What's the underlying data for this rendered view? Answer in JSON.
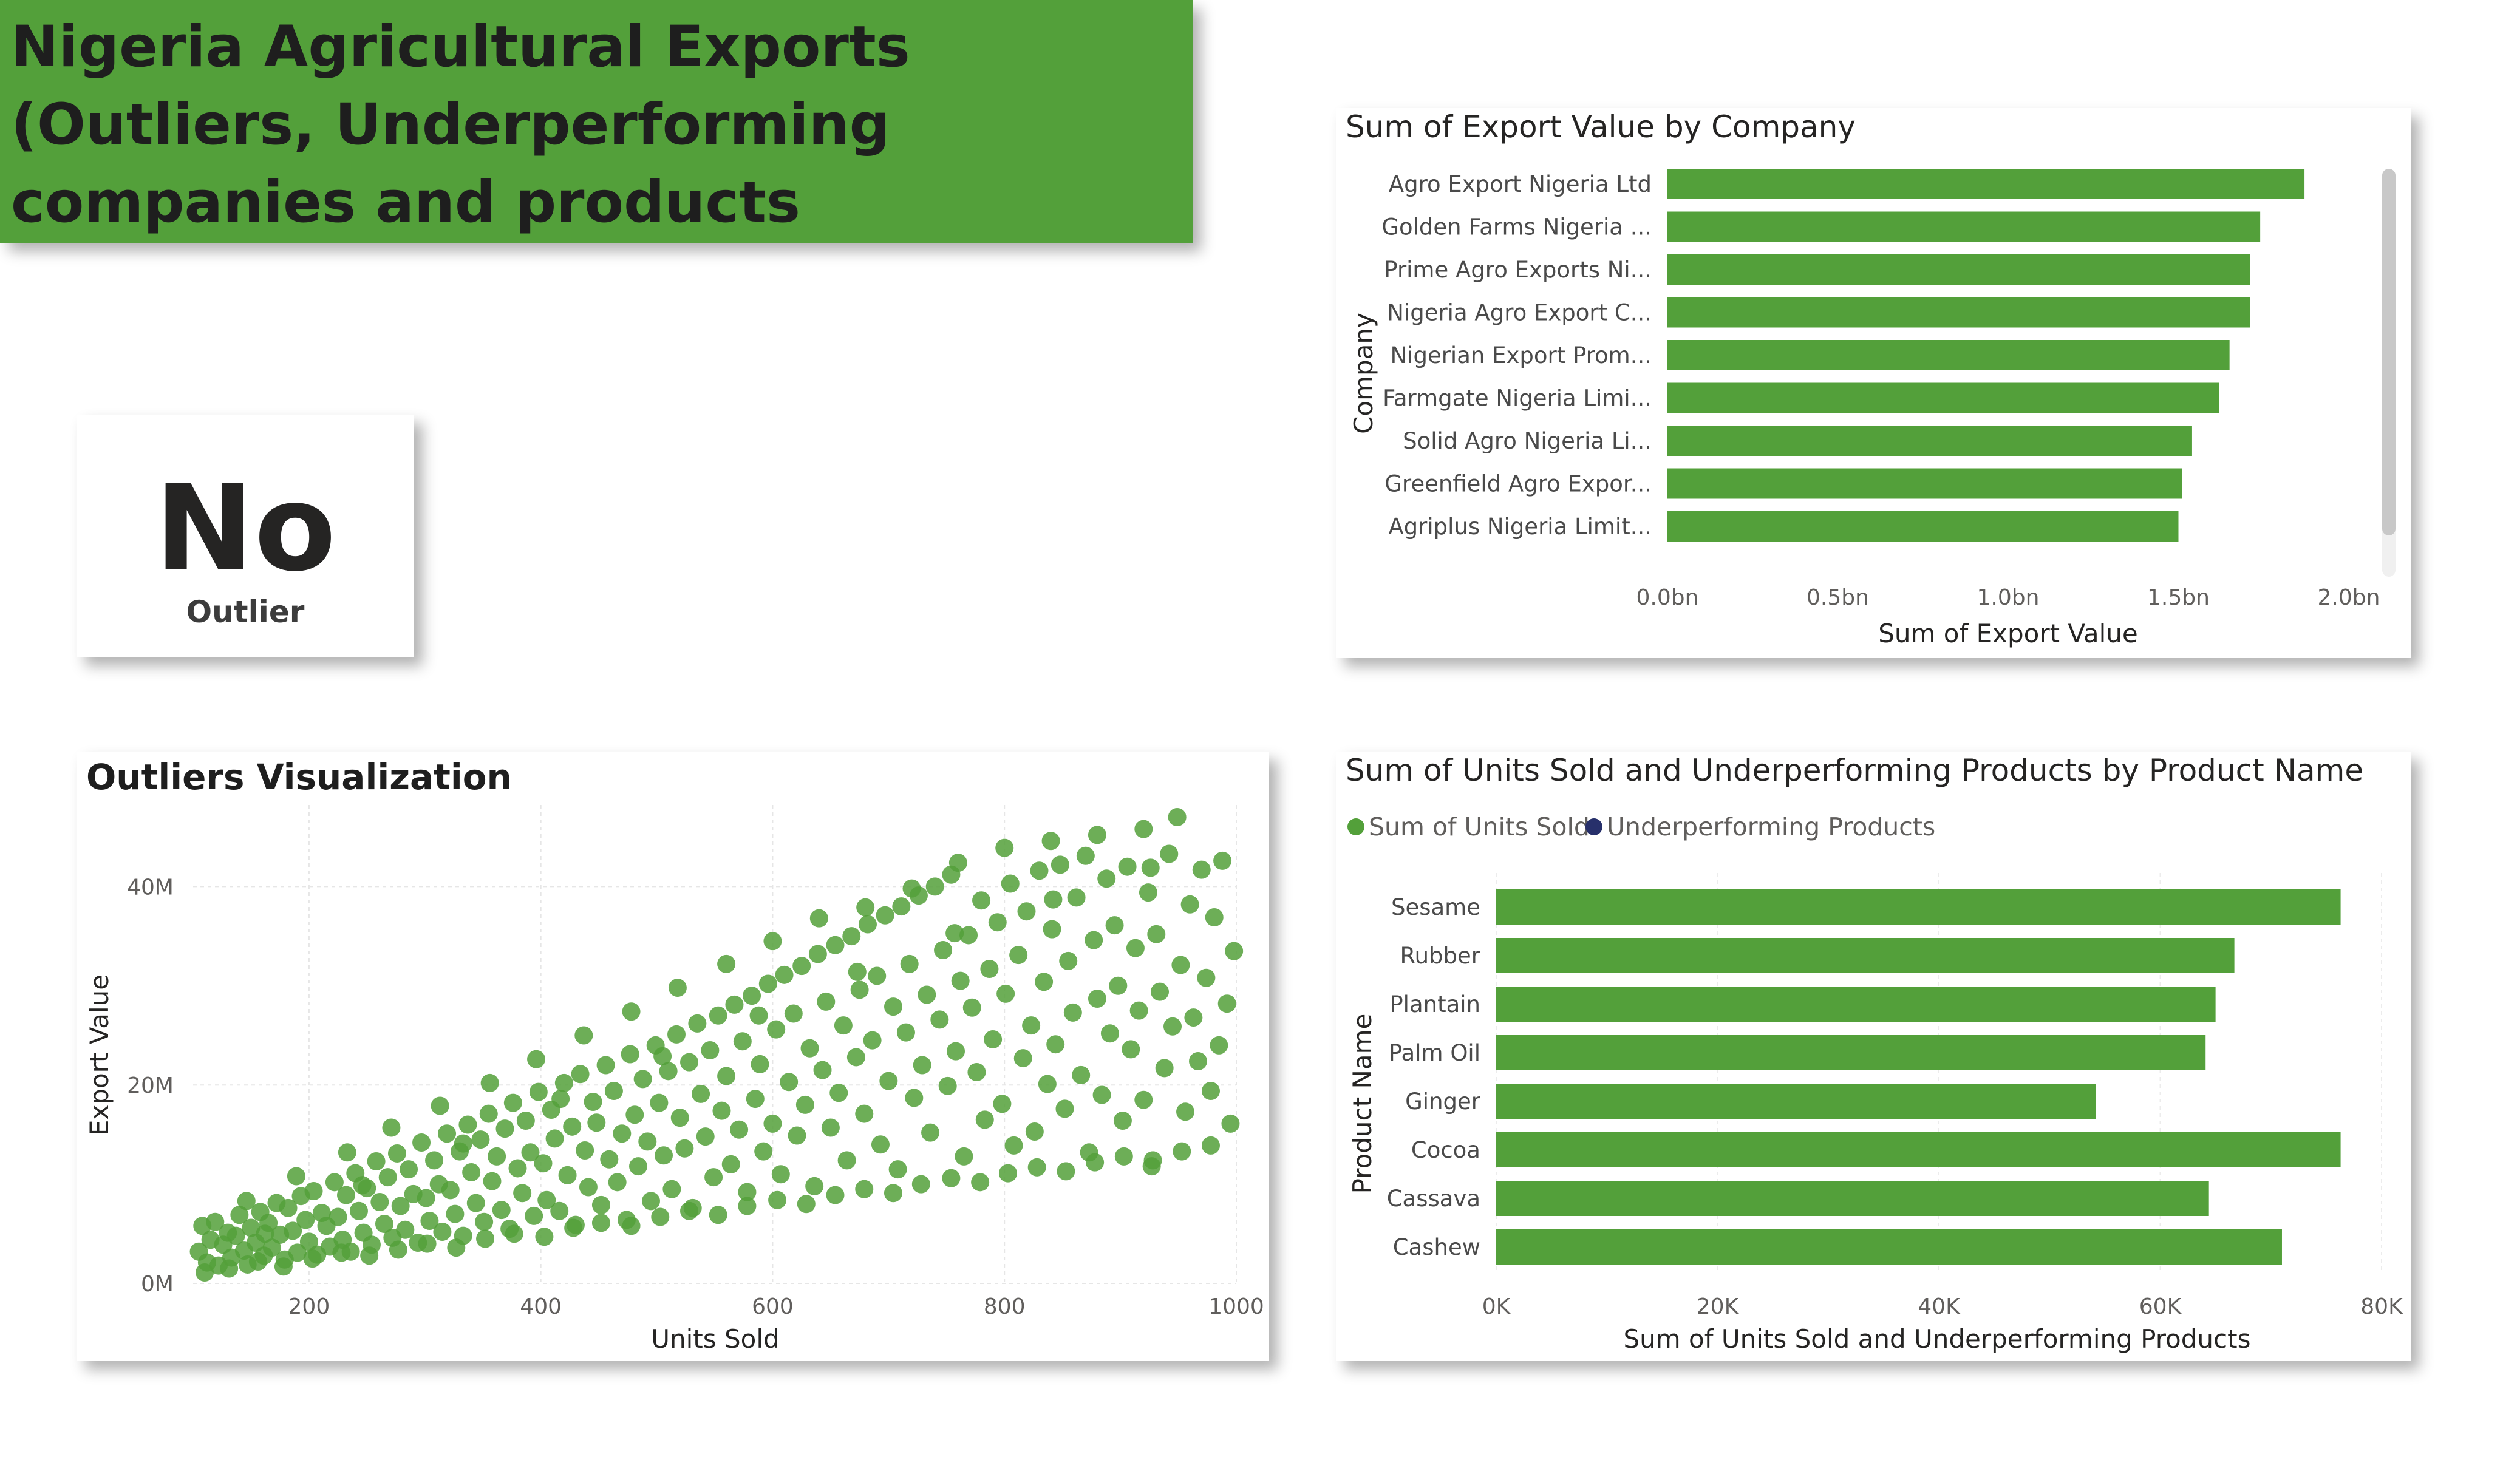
{
  "colors": {
    "accent": "#53a03a",
    "bar": "#53a03a",
    "underperforming": "#27306b",
    "title_bg": "#53a03a"
  },
  "title": "Nigeria Agricultural Exports (Outliers, Underperforming companies and products",
  "kpi": {
    "value": "No",
    "label": "Outlier"
  },
  "chart_data": [
    {
      "id": "company",
      "type": "bar",
      "orientation": "horizontal",
      "title": "Sum of Export Value by Company",
      "xlabel": "Sum of Export Value",
      "ylabel": "Company",
      "categories": [
        "Agro Export Nigeria Ltd",
        "Golden Farms Nigeria ...",
        "Prime Agro Exports Ni...",
        "Nigeria Agro Export C...",
        "Nigerian Export Prom...",
        "Farmgate Nigeria Limi...",
        "Solid Agro Nigeria Li...",
        "Greenfield Agro Expor...",
        "Agriplus Nigeria Limit..."
      ],
      "values": [
        1.87,
        1.74,
        1.71,
        1.71,
        1.65,
        1.62,
        1.54,
        1.51,
        1.5
      ],
      "xlim": [
        0,
        2.0
      ],
      "xticks": [
        "0.0bn",
        "0.5bn",
        "1.0bn",
        "1.5bn",
        "2.0bn"
      ],
      "grid": false,
      "scrollbar": true
    },
    {
      "id": "scatter",
      "type": "scatter",
      "title": "Outliers Visualization",
      "xlabel": "Units Sold",
      "ylabel": "Export Value",
      "xlim": [
        100,
        1000
      ],
      "ylim": [
        0,
        47
      ],
      "xticks": [
        "200",
        "400",
        "600",
        "800",
        "1000"
      ],
      "yticks": [
        "0M",
        "20M",
        "40M"
      ],
      "grid": true,
      "note_units": "y in millions",
      "points": [
        [
          105,
          3.2
        ],
        [
          108,
          5.8
        ],
        [
          112,
          2.1
        ],
        [
          115,
          4.4
        ],
        [
          119,
          6.2
        ],
        [
          122,
          1.8
        ],
        [
          126,
          3.9
        ],
        [
          130,
          5.1
        ],
        [
          133,
          2.6
        ],
        [
          137,
          4.8
        ],
        [
          140,
          6.9
        ],
        [
          144,
          3.3
        ],
        [
          147,
          1.9
        ],
        [
          150,
          5.6
        ],
        [
          154,
          4.1
        ],
        [
          158,
          7.2
        ],
        [
          161,
          2.8
        ],
        [
          165,
          6.1
        ],
        [
          168,
          3.6
        ],
        [
          172,
          8.1
        ],
        [
          175,
          4.9
        ],
        [
          179,
          2.4
        ],
        [
          182,
          7.6
        ],
        [
          186,
          5.3
        ],
        [
          190,
          3.1
        ],
        [
          193,
          8.8
        ],
        [
          197,
          6.4
        ],
        [
          200,
          4.2
        ],
        [
          204,
          9.3
        ],
        [
          207,
          2.9
        ],
        [
          211,
          7.1
        ],
        [
          215,
          5.8
        ],
        [
          218,
          3.7
        ],
        [
          222,
          10.2
        ],
        [
          225,
          6.7
        ],
        [
          229,
          4.4
        ],
        [
          232,
          8.9
        ],
        [
          236,
          3.2
        ],
        [
          240,
          11.1
        ],
        [
          243,
          7.3
        ],
        [
          247,
          5.1
        ],
        [
          250,
          9.6
        ],
        [
          254,
          3.9
        ],
        [
          258,
          12.3
        ],
        [
          261,
          8.2
        ],
        [
          265,
          6.0
        ],
        [
          268,
          10.7
        ],
        [
          272,
          4.6
        ],
        [
          276,
          13.1
        ],
        [
          279,
          7.8
        ],
        [
          283,
          5.4
        ],
        [
          286,
          11.5
        ],
        [
          290,
          9.0
        ],
        [
          294,
          4.1
        ],
        [
          297,
          14.2
        ],
        [
          301,
          8.6
        ],
        [
          304,
          6.3
        ],
        [
          308,
          12.4
        ],
        [
          312,
          10.0
        ],
        [
          315,
          5.2
        ],
        [
          319,
          15.1
        ],
        [
          322,
          9.4
        ],
        [
          326,
          7.0
        ],
        [
          330,
          13.3
        ],
        [
          333,
          4.8
        ],
        [
          337,
          16.0
        ],
        [
          340,
          11.2
        ],
        [
          344,
          8.1
        ],
        [
          348,
          14.5
        ],
        [
          351,
          6.2
        ],
        [
          355,
          17.1
        ],
        [
          358,
          10.3
        ],
        [
          362,
          12.8
        ],
        [
          366,
          7.4
        ],
        [
          369,
          15.6
        ],
        [
          373,
          5.5
        ],
        [
          376,
          18.2
        ],
        [
          380,
          11.6
        ],
        [
          384,
          9.1
        ],
        [
          387,
          16.4
        ],
        [
          391,
          13.2
        ],
        [
          394,
          6.8
        ],
        [
          398,
          19.3
        ],
        [
          402,
          12.1
        ],
        [
          405,
          8.4
        ],
        [
          409,
          17.5
        ],
        [
          412,
          14.6
        ],
        [
          416,
          7.3
        ],
        [
          420,
          20.2
        ],
        [
          423,
          10.9
        ],
        [
          427,
          15.8
        ],
        [
          430,
          5.9
        ],
        [
          434,
          21.1
        ],
        [
          438,
          13.4
        ],
        [
          441,
          9.7
        ],
        [
          445,
          18.3
        ],
        [
          448,
          16.2
        ],
        [
          452,
          7.9
        ],
        [
          456,
          22.0
        ],
        [
          459,
          12.5
        ],
        [
          463,
          19.4
        ],
        [
          466,
          10.2
        ],
        [
          470,
          15.1
        ],
        [
          474,
          6.4
        ],
        [
          477,
          23.1
        ],
        [
          481,
          17.0
        ],
        [
          484,
          11.8
        ],
        [
          488,
          20.6
        ],
        [
          492,
          14.3
        ],
        [
          495,
          8.3
        ],
        [
          499,
          24.0
        ],
        [
          502,
          18.2
        ],
        [
          506,
          12.9
        ],
        [
          510,
          21.4
        ],
        [
          513,
          9.5
        ],
        [
          517,
          25.1
        ],
        [
          520,
          16.7
        ],
        [
          524,
          13.6
        ],
        [
          528,
          22.3
        ],
        [
          531,
          7.6
        ],
        [
          535,
          26.2
        ],
        [
          538,
          19.1
        ],
        [
          542,
          14.8
        ],
        [
          546,
          23.5
        ],
        [
          549,
          10.7
        ],
        [
          553,
          27.0
        ],
        [
          556,
          17.4
        ],
        [
          560,
          20.9
        ],
        [
          564,
          12.0
        ],
        [
          567,
          28.1
        ],
        [
          571,
          15.5
        ],
        [
          574,
          24.4
        ],
        [
          578,
          9.2
        ],
        [
          582,
          29.0
        ],
        [
          585,
          18.6
        ],
        [
          589,
          22.1
        ],
        [
          592,
          13.3
        ],
        [
          596,
          30.2
        ],
        [
          600,
          16.1
        ],
        [
          603,
          25.6
        ],
        [
          607,
          11.0
        ],
        [
          610,
          31.1
        ],
        [
          614,
          20.3
        ],
        [
          618,
          27.2
        ],
        [
          621,
          14.9
        ],
        [
          625,
          32.0
        ],
        [
          628,
          18.0
        ],
        [
          632,
          23.7
        ],
        [
          636,
          9.8
        ],
        [
          639,
          33.2
        ],
        [
          643,
          21.5
        ],
        [
          646,
          28.4
        ],
        [
          650,
          15.7
        ],
        [
          654,
          34.1
        ],
        [
          657,
          19.2
        ],
        [
          661,
          26.0
        ],
        [
          664,
          12.4
        ],
        [
          668,
          35.0
        ],
        [
          672,
          22.8
        ],
        [
          675,
          29.6
        ],
        [
          679,
          17.1
        ],
        [
          682,
          36.2
        ],
        [
          686,
          24.5
        ],
        [
          690,
          31.0
        ],
        [
          693,
          14.0
        ],
        [
          697,
          37.1
        ],
        [
          700,
          20.4
        ],
        [
          704,
          27.9
        ],
        [
          708,
          11.5
        ],
        [
          711,
          38.0
        ],
        [
          715,
          25.3
        ],
        [
          718,
          32.2
        ],
        [
          722,
          18.7
        ],
        [
          726,
          39.1
        ],
        [
          729,
          22.0
        ],
        [
          733,
          29.1
        ],
        [
          736,
          15.2
        ],
        [
          740,
          40.0
        ],
        [
          744,
          26.6
        ],
        [
          747,
          33.6
        ],
        [
          751,
          19.9
        ],
        [
          754,
          41.2
        ],
        [
          758,
          23.4
        ],
        [
          762,
          30.5
        ],
        [
          765,
          12.8
        ],
        [
          769,
          35.1
        ],
        [
          772,
          27.8
        ],
        [
          776,
          21.3
        ],
        [
          780,
          38.6
        ],
        [
          783,
          16.5
        ],
        [
          787,
          31.7
        ],
        [
          790,
          24.6
        ],
        [
          794,
          36.4
        ],
        [
          798,
          18.1
        ],
        [
          801,
          29.2
        ],
        [
          805,
          40.3
        ],
        [
          808,
          13.9
        ],
        [
          812,
          33.1
        ],
        [
          816,
          22.7
        ],
        [
          819,
          37.5
        ],
        [
          823,
          26.0
        ],
        [
          826,
          15.3
        ],
        [
          830,
          41.6
        ],
        [
          834,
          30.4
        ],
        [
          837,
          20.1
        ],
        [
          841,
          35.7
        ],
        [
          844,
          24.1
        ],
        [
          848,
          42.2
        ],
        [
          852,
          17.6
        ],
        [
          855,
          32.5
        ],
        [
          859,
          27.3
        ],
        [
          862,
          38.9
        ],
        [
          866,
          21.0
        ],
        [
          870,
          43.1
        ],
        [
          873,
          13.2
        ],
        [
          877,
          34.6
        ],
        [
          880,
          28.7
        ],
        [
          884,
          19.0
        ],
        [
          888,
          40.8
        ],
        [
          891,
          25.2
        ],
        [
          895,
          36.1
        ],
        [
          898,
          30.0
        ],
        [
          902,
          16.4
        ],
        [
          906,
          42.0
        ],
        [
          909,
          23.6
        ],
        [
          913,
          33.8
        ],
        [
          916,
          27.5
        ],
        [
          920,
          18.5
        ],
        [
          924,
          39.4
        ],
        [
          927,
          11.8
        ],
        [
          931,
          35.2
        ],
        [
          934,
          29.4
        ],
        [
          938,
          21.7
        ],
        [
          942,
          43.3
        ],
        [
          945,
          25.9
        ],
        [
          949,
          47.0
        ],
        [
          952,
          32.1
        ],
        [
          956,
          17.3
        ],
        [
          960,
          38.2
        ],
        [
          963,
          26.8
        ],
        [
          967,
          22.4
        ],
        [
          970,
          41.7
        ],
        [
          974,
          30.8
        ],
        [
          978,
          19.4
        ],
        [
          981,
          36.9
        ],
        [
          985,
          24.0
        ],
        [
          988,
          42.6
        ],
        [
          992,
          28.2
        ],
        [
          995,
          16.1
        ],
        [
          998,
          33.5
        ],
        [
          110,
          1.1
        ],
        [
          131,
          1.5
        ],
        [
          156,
          2.2
        ],
        [
          178,
          1.7
        ],
        [
          203,
          2.5
        ],
        [
          228,
          3.1
        ],
        [
          252,
          2.8
        ],
        [
          277,
          3.4
        ],
        [
          302,
          4.0
        ],
        [
          327,
          3.6
        ],
        [
          352,
          4.5
        ],
        [
          377,
          5.0
        ],
        [
          403,
          4.7
        ],
        [
          428,
          5.6
        ],
        [
          452,
          6.1
        ],
        [
          478,
          5.8
        ],
        [
          503,
          6.7
        ],
        [
          528,
          7.3
        ],
        [
          553,
          6.9
        ],
        [
          578,
          7.8
        ],
        [
          604,
          8.4
        ],
        [
          629,
          8.0
        ],
        [
          654,
          8.9
        ],
        [
          679,
          9.5
        ],
        [
          704,
          9.1
        ],
        [
          728,
          10.0
        ],
        [
          754,
          10.6
        ],
        [
          779,
          10.2
        ],
        [
          803,
          11.1
        ],
        [
          828,
          11.7
        ],
        [
          853,
          11.3
        ],
        [
          878,
          12.2
        ],
        [
          903,
          12.8
        ],
        [
          928,
          12.4
        ],
        [
          953,
          13.3
        ],
        [
          978,
          13.9
        ],
        [
          146,
          8.3
        ],
        [
          189,
          10.8
        ],
        [
          233,
          13.2
        ],
        [
          271,
          15.7
        ],
        [
          313,
          17.9
        ],
        [
          356,
          20.2
        ],
        [
          396,
          22.6
        ],
        [
          437,
          25.0
        ],
        [
          478,
          27.4
        ],
        [
          518,
          29.8
        ],
        [
          560,
          32.2
        ],
        [
          600,
          34.5
        ],
        [
          640,
          36.8
        ],
        [
          680,
          37.9
        ],
        [
          720,
          39.8
        ],
        [
          760,
          42.4
        ],
        [
          800,
          43.9
        ],
        [
          840,
          44.6
        ],
        [
          880,
          45.2
        ],
        [
          920,
          45.8
        ],
        [
          162,
          5.0
        ],
        [
          246,
          9.9
        ],
        [
          333,
          14.1
        ],
        [
          417,
          18.6
        ],
        [
          505,
          22.9
        ],
        [
          588,
          27.0
        ],
        [
          673,
          31.4
        ],
        [
          757,
          35.3
        ],
        [
          842,
          38.7
        ],
        [
          926,
          41.9
        ]
      ]
    },
    {
      "id": "product",
      "type": "bar",
      "orientation": "horizontal",
      "title": "Sum of Units Sold and Underperforming Products by Product Name",
      "xlabel": "Sum of Units Sold and Underperforming Products",
      "ylabel": "Product Name",
      "legend": [
        "Sum of Units Sold",
        "Underperforming Products"
      ],
      "legend_position": "top-left",
      "categories": [
        "Sesame",
        "Rubber",
        "Plantain",
        "Palm Oil",
        "Ginger",
        "Cocoa",
        "Cassava",
        "Cashew"
      ],
      "values": [
        76300,
        66700,
        65000,
        64100,
        54200,
        76300,
        64400,
        71000
      ],
      "xlim": [
        0,
        80000
      ],
      "xticks": [
        "0K",
        "20K",
        "40K",
        "60K",
        "80K"
      ],
      "grid": true
    }
  ]
}
